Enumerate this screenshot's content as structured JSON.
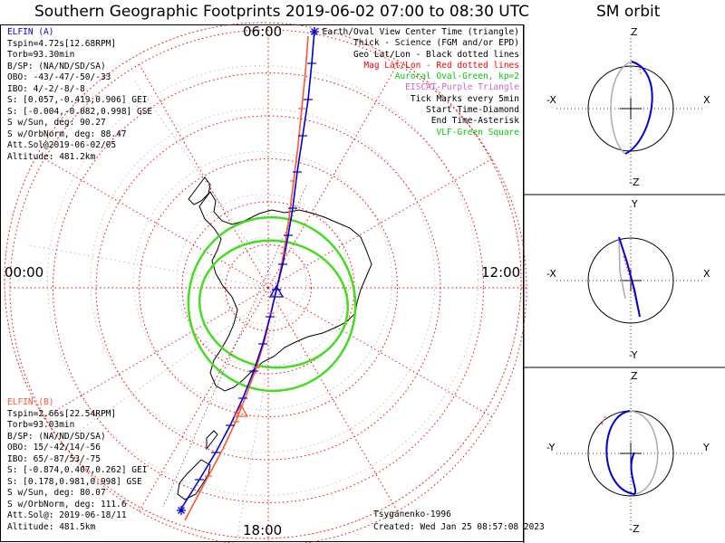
{
  "title": "Southern Geographic Footprints 2019-06-02 07:00 to 08:30 UTC",
  "orbit_title": "SM orbit",
  "clock_labels": {
    "top": "06:00",
    "left": "00:00",
    "right": "12:00",
    "bottom": "18:00"
  },
  "elfin_a": {
    "name": "ELFIN (A)",
    "lines": [
      "Tspin=4.72s[12.68RPM]",
      "Torb=93.30min",
      "B/SP: (NA/ND/SD/SA)",
      "OBO: -43/-47/-50/-33",
      "IBO: 4/-2/-8/-8",
      "S: [0.057,-0.419,0.906] GEI",
      "S: [-0.004,-0.082,0.998] GSE",
      "S w/Sun, deg: 90.27",
      "S w/OrbNorm, deg: 88.47",
      "Att.Sol@2019-06-02/05",
      "Altitude: 481.2km"
    ]
  },
  "elfin_b": {
    "name": "ELFIN (B)",
    "lines": [
      "Tspin=2.66s[22.54RPM]",
      "Torb=93.03min",
      "B/SP: (NA/ND/SD/SA)",
      "OBO: 15/-42/14/-56",
      "IBO: 65/-87/53/-75",
      "S: [-0.874,0.407,0.262] GEI",
      "S: [0.178,0.981,0.998] GSE",
      "S w/Sun, deg: 80.07",
      "S w/OrbNorm, deg: 111.6",
      "Att.Sol@: 2019-06-18/11",
      "Altitude: 481.5km"
    ]
  },
  "legend": [
    {
      "text": "Earth/Oval View Center Time (triangle)",
      "color": "#000000"
    },
    {
      "text": "Thick - Science (FGM and/or EPD)",
      "color": "#000000"
    },
    {
      "text": "Geo Lat/Lon - Black dotted lines",
      "color": "#000000"
    },
    {
      "text": "Mag Lat/Lon - Red dotted lines",
      "color": "#ff0000"
    },
    {
      "text": "Auroral Oval-Green, kp=2",
      "color": "#00cc00"
    },
    {
      "text": "EISCAT-Purple Triangle",
      "color": "#cc66cc"
    },
    {
      "text": "Tick Marks every 5min",
      "color": "#000000"
    },
    {
      "text": "Start Time-Diamond",
      "color": "#000000"
    },
    {
      "text": "End Time-Asterisk",
      "color": "#000000"
    },
    {
      "text": "VLF-Green Square",
      "color": "#00cc00"
    }
  ],
  "credit": {
    "author": "Tsyganenko-1996",
    "created": "Created: Wed Jan 25 08:57:08 2023"
  },
  "orbit_panels": [
    {
      "top": "Z",
      "bottom": "-Z",
      "left": "-X",
      "right": "X"
    },
    {
      "top": "Y",
      "bottom": "-Y",
      "left": "-X",
      "right": "X"
    },
    {
      "top": "Z",
      "bottom": "-Z",
      "left": "-Y",
      "right": "Y"
    }
  ],
  "colors": {
    "elfin_a": "#0000dd",
    "elfin_b": "#ff5533",
    "oval": "#44dd22",
    "geo_grid": "#000000",
    "mag_grid": "#ff0000",
    "orbit_gray": "#aaaaaa"
  },
  "chart_data": {
    "type": "polar-footprint",
    "hemisphere": "south",
    "view_center_lat_deg": -90,
    "mag_lat_circles_deg": [
      -30,
      -40,
      -50,
      -60,
      -70,
      -80
    ],
    "lon_spokes_deg": [
      0,
      30,
      60,
      90,
      120,
      150,
      180,
      210,
      240,
      270,
      300,
      330
    ],
    "tick_interval_min": 5,
    "auroral_oval_kp": 2
  }
}
